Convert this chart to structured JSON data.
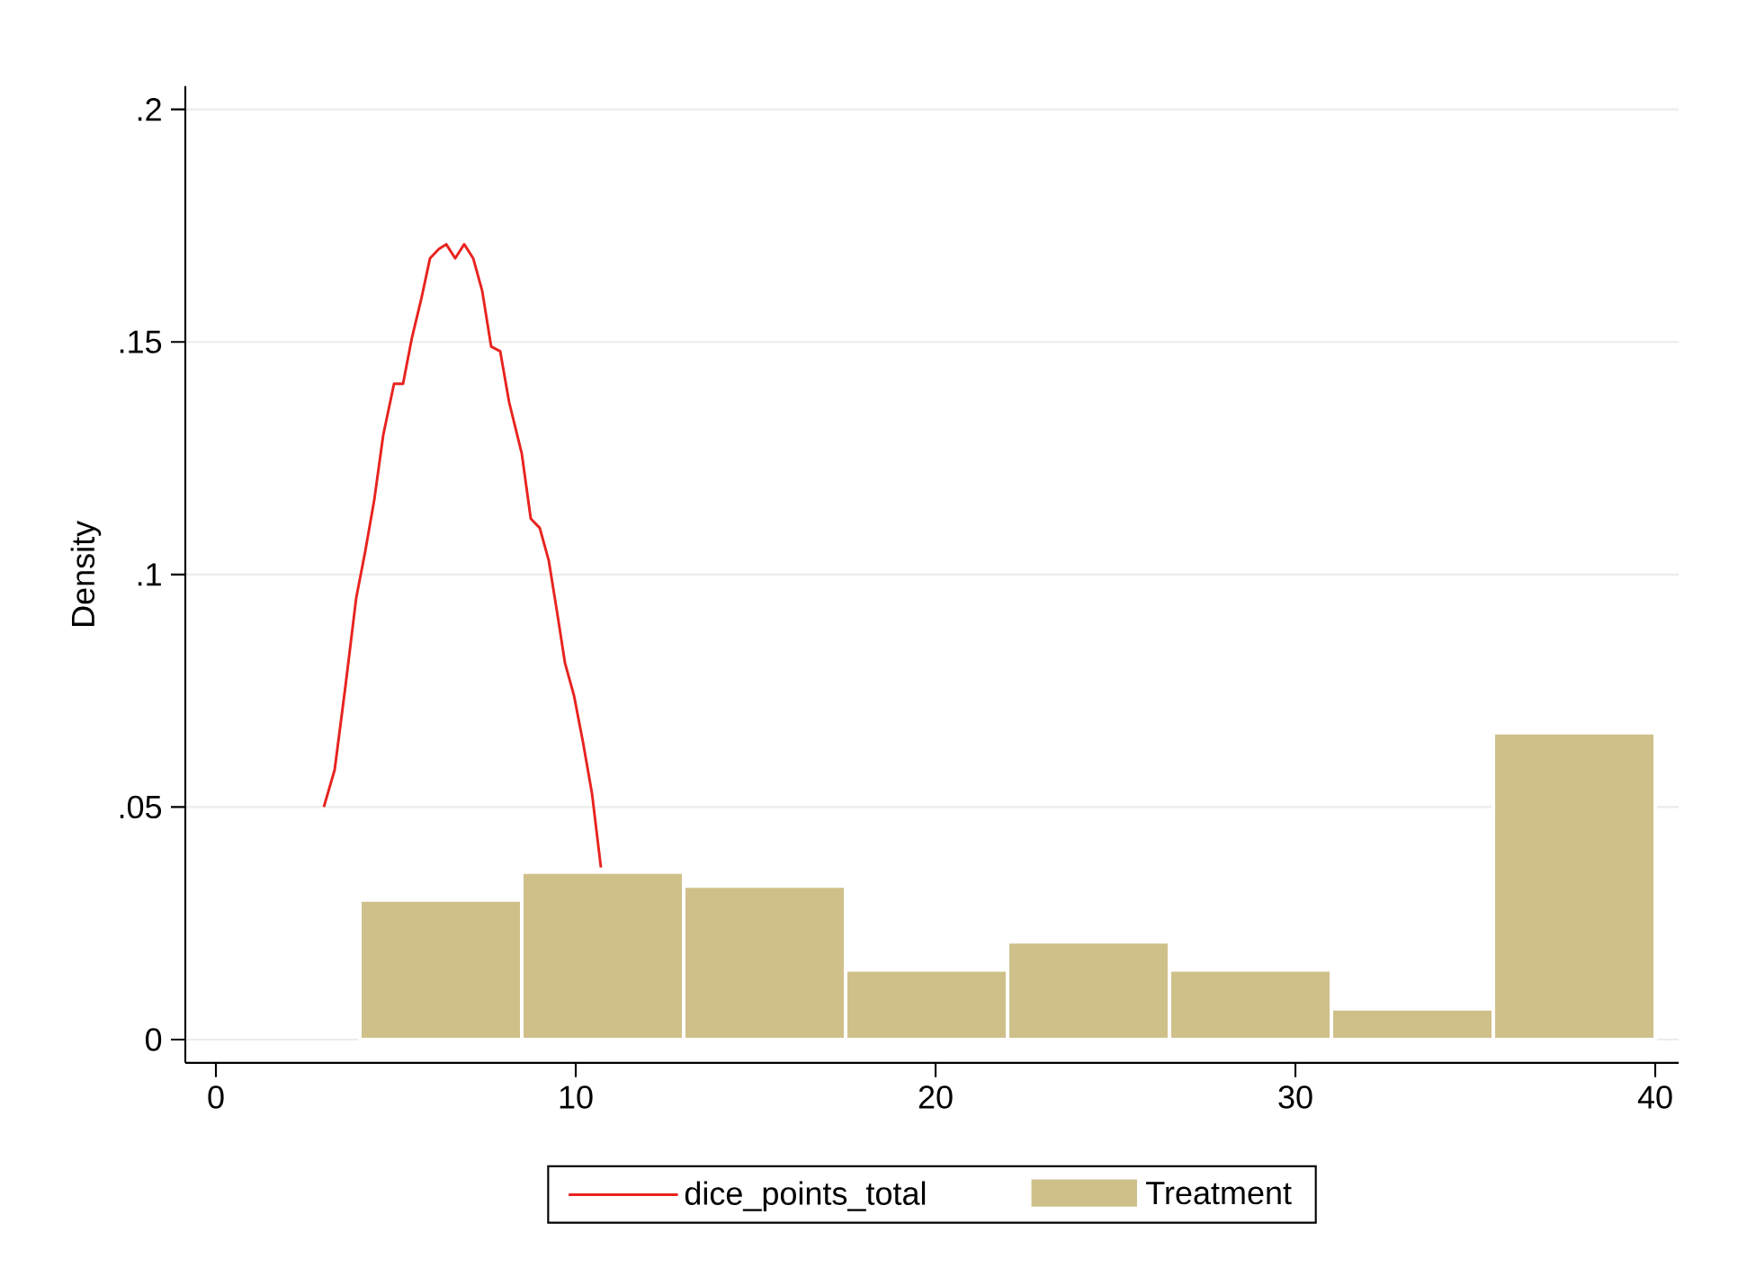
{
  "chart_data": {
    "type": "histogram",
    "ylabel": "Density",
    "xlim": [
      -0.85,
      40.65
    ],
    "ylim": [
      -0.005,
      0.205
    ],
    "xticks": [
      0,
      10,
      20,
      30,
      40
    ],
    "yticks": [
      0,
      {
        "value": 0.05,
        "label": ".05"
      },
      {
        "value": 0.1,
        "label": ".1"
      },
      {
        "value": 0.15,
        "label": ".15"
      },
      {
        "value": 0.2,
        "label": ".2"
      }
    ],
    "grid": "y",
    "legend": "bottom",
    "marker": "none",
    "series": [
      {
        "name": "dice_points_total",
        "type": "line",
        "color": "#e8231f",
        "x": [
          3,
          3.3,
          3.6,
          3.9,
          4.15,
          4.4,
          4.65,
          4.95,
          5.2,
          5.45,
          5.7,
          5.95,
          6.2,
          6.4,
          6.65,
          6.9,
          7.15,
          7.4,
          7.65,
          7.9,
          8.15,
          8.5,
          8.75,
          9,
          9.25,
          9.5,
          9.7,
          9.95,
          10.2,
          10.45,
          10.7
        ],
        "values": [
          0.05,
          0.058,
          0.076,
          0.095,
          0.105,
          0.116,
          0.13,
          0.141,
          0.141,
          0.151,
          0.159,
          0.168,
          0.17,
          0.171,
          0.168,
          0.171,
          0.168,
          0.161,
          0.149,
          0.148,
          0.137,
          0.126,
          0.112,
          0.11,
          0.103,
          0.091,
          0.081,
          0.074,
          0.064,
          0.053,
          0.037
        ]
      },
      {
        "name": "Treatment",
        "color": "#cfc08a",
        "bins": [
          4,
          8.5,
          13,
          17.5,
          22,
          26.5,
          31,
          35.5,
          40
        ],
        "values": [
          0.03,
          0.036,
          0.033,
          0.015,
          0.021,
          0.015,
          0.0066,
          0.066
        ]
      }
    ]
  }
}
